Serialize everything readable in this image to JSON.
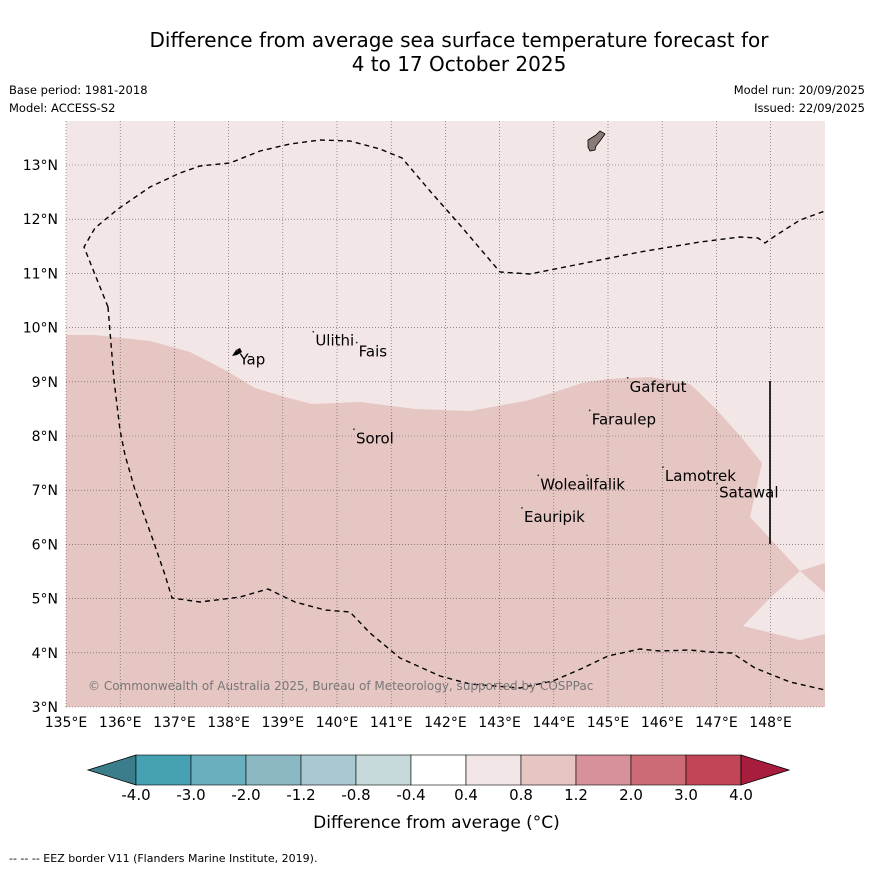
{
  "title_line1": "Difference from average sea surface temperature forecast for",
  "title_line2": "4 to 17 October 2025",
  "base_period": "Base period: 1981-2018",
  "model": "Model: ACCESS-S2",
  "model_run": "Model run: 20/09/2025",
  "issued": "Issued: 22/09/2025",
  "lon_labels": [
    "135°E",
    "136°E",
    "137°E",
    "138°E",
    "139°E",
    "140°E",
    "141°E",
    "142°E",
    "143°E",
    "144°E",
    "145°E",
    "146°E",
    "147°E",
    "148°E"
  ],
  "lat_labels": [
    "3°N",
    "4°N",
    "5°N",
    "6°N",
    "7°N",
    "8°N",
    "9°N",
    "10°N",
    "11°N",
    "12°N",
    "13°N"
  ],
  "places": [
    {
      "name": "Yap",
      "lon": 138.2,
      "lat": 9.5
    },
    {
      "name": "Ulithi",
      "lon": 139.6,
      "lat": 9.85
    },
    {
      "name": "Fais",
      "lon": 140.4,
      "lat": 9.65
    },
    {
      "name": "Gaferut",
      "lon": 145.4,
      "lat": 9.0
    },
    {
      "name": "Faraulep",
      "lon": 144.7,
      "lat": 8.4
    },
    {
      "name": "Sorol",
      "lon": 140.35,
      "lat": 8.05
    },
    {
      "name": "Woleai",
      "lon": 143.75,
      "lat": 7.2
    },
    {
      "name": "Ifalik",
      "lon": 144.65,
      "lat": 7.2
    },
    {
      "name": "Lamotrek",
      "lon": 146.05,
      "lat": 7.35
    },
    {
      "name": "Satawal",
      "lon": 147.05,
      "lat": 7.05
    },
    {
      "name": "Eauripik",
      "lon": 143.45,
      "lat": 6.6
    }
  ],
  "copyright": "© Commonwealth of Australia 2025, Bureau of Meteorology, supported by COSPPac",
  "colorbar": {
    "ticks": [
      "-4.0",
      "-3.0",
      "-2.0",
      "-1.2",
      "-0.8",
      "-0.4",
      "0.4",
      "0.8",
      "1.2",
      "2.0",
      "3.0",
      "4.0"
    ],
    "colors": [
      "#3b7d8a",
      "#46a1b3",
      "#6aafbd",
      "#8ab9c4",
      "#a9c9d0",
      "#c8d9dc",
      "#ffffff",
      "#f3e6e6",
      "#e6c6c2",
      "#d8919a",
      "#cc6a75",
      "#c04657",
      "#a81c3e"
    ],
    "label": "Difference from average (°C)"
  },
  "footnote": "--  --  -- EEZ border V11 (Flanders Marine Institute, 2019).",
  "colors": {
    "light_anomaly": "#f3e6e6",
    "medium_anomaly": "#e6c6c2",
    "land": "#8a7a78"
  }
}
